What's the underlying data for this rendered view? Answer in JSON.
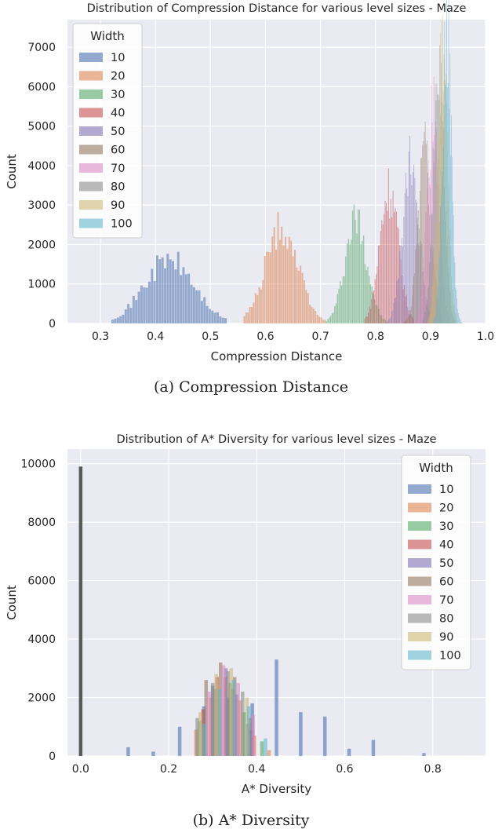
{
  "chart_data": [
    {
      "type": "histogram",
      "title": "Distribution of Compression Distance for various level sizes - Maze",
      "xlabel": "Compression Distance",
      "ylabel": "Count",
      "xlim": [
        0.24,
        1.0
      ],
      "ylim": [
        0,
        7700
      ],
      "xticks": [
        "0.3",
        "0.4",
        "0.5",
        "0.6",
        "0.7",
        "0.8",
        "0.9",
        "1.0"
      ],
      "yticks": [
        "0",
        "1000",
        "2000",
        "3000",
        "4000",
        "5000",
        "6000",
        "7000"
      ],
      "grid": true,
      "legend": {
        "title": "Width",
        "position": "top-left"
      },
      "series": [
        {
          "name": "10",
          "color": "#4c72b0",
          "mean": 0.425,
          "sd": 0.045,
          "peak": 1600,
          "xmin": 0.32,
          "xmax": 0.53
        },
        {
          "name": "20",
          "color": "#dd8452",
          "mean": 0.63,
          "sd": 0.03,
          "peak": 2400,
          "xmin": 0.56,
          "xmax": 0.71
        },
        {
          "name": "30",
          "color": "#55a868",
          "mean": 0.765,
          "sd": 0.02,
          "peak": 2650,
          "xmin": 0.71,
          "xmax": 0.82
        },
        {
          "name": "40",
          "color": "#c44e52",
          "mean": 0.825,
          "sd": 0.017,
          "peak": 3400,
          "xmin": 0.78,
          "xmax": 0.87
        },
        {
          "name": "50",
          "color": "#8172b3",
          "mean": 0.865,
          "sd": 0.015,
          "peak": 3950,
          "xmin": 0.82,
          "xmax": 0.9
        },
        {
          "name": "60",
          "color": "#937860",
          "mean": 0.89,
          "sd": 0.012,
          "peak": 4500,
          "xmin": 0.85,
          "xmax": 0.92
        },
        {
          "name": "70",
          "color": "#da8bc3",
          "mean": 0.905,
          "sd": 0.011,
          "peak": 5200,
          "xmin": 0.87,
          "xmax": 0.935
        },
        {
          "name": "80",
          "color": "#8c8c8c",
          "mean": 0.915,
          "sd": 0.01,
          "peak": 6200,
          "xmin": 0.885,
          "xmax": 0.945
        },
        {
          "name": "90",
          "color": "#ccb974",
          "mean": 0.922,
          "sd": 0.009,
          "peak": 7100,
          "xmin": 0.895,
          "xmax": 0.95
        },
        {
          "name": "100",
          "color": "#64b5cd",
          "mean": 0.93,
          "sd": 0.008,
          "peak": 7600,
          "xmin": 0.905,
          "xmax": 0.96
        }
      ]
    },
    {
      "type": "histogram",
      "title": "Distribution of A* Diversity for various level sizes - Maze",
      "xlabel": "A* Diversity",
      "ylabel": "Count",
      "xlim": [
        -0.03,
        0.92
      ],
      "ylim": [
        0,
        10500
      ],
      "xticks": [
        "0.0",
        "0.2",
        "0.4",
        "0.6",
        "0.8"
      ],
      "yticks": [
        "0",
        "2000",
        "4000",
        "6000",
        "8000",
        "10000"
      ],
      "grid": true,
      "legend": {
        "title": "Width",
        "position": "top-right"
      },
      "zero_bar": {
        "x": 0.0,
        "value": 9900,
        "color": "#595959"
      },
      "bars": [
        {
          "s": 0,
          "x": 0.108,
          "v": 300
        },
        {
          "s": 0,
          "x": 0.165,
          "v": 150
        },
        {
          "s": 0,
          "x": 0.225,
          "v": 1000
        },
        {
          "s": 0,
          "x": 0.28,
          "v": 1700
        },
        {
          "s": 0,
          "x": 0.335,
          "v": 2000
        },
        {
          "s": 0,
          "x": 0.39,
          "v": 1800
        },
        {
          "s": 0,
          "x": 0.445,
          "v": 3300
        },
        {
          "s": 0,
          "x": 0.5,
          "v": 1500
        },
        {
          "s": 0,
          "x": 0.555,
          "v": 1350
        },
        {
          "s": 0,
          "x": 0.61,
          "v": 250
        },
        {
          "s": 0,
          "x": 0.665,
          "v": 550
        },
        {
          "s": 0,
          "x": 0.78,
          "v": 100
        },
        {
          "s": 1,
          "x": 0.262,
          "v": 900
        },
        {
          "s": 1,
          "x": 0.295,
          "v": 2000
        },
        {
          "s": 1,
          "x": 0.328,
          "v": 2700
        },
        {
          "s": 1,
          "x": 0.362,
          "v": 1900
        },
        {
          "s": 1,
          "x": 0.395,
          "v": 700
        },
        {
          "s": 1,
          "x": 0.428,
          "v": 200
        },
        {
          "s": 2,
          "x": 0.27,
          "v": 1200
        },
        {
          "s": 2,
          "x": 0.305,
          "v": 2300
        },
        {
          "s": 2,
          "x": 0.34,
          "v": 2500
        },
        {
          "s": 2,
          "x": 0.372,
          "v": 1500
        },
        {
          "s": 2,
          "x": 0.412,
          "v": 500
        },
        {
          "s": 3,
          "x": 0.278,
          "v": 1600
        },
        {
          "s": 3,
          "x": 0.31,
          "v": 2700
        },
        {
          "s": 3,
          "x": 0.345,
          "v": 2300
        },
        {
          "s": 3,
          "x": 0.38,
          "v": 1100
        },
        {
          "s": 4,
          "x": 0.3,
          "v": 2400
        },
        {
          "s": 4,
          "x": 0.33,
          "v": 3000
        },
        {
          "s": 4,
          "x": 0.355,
          "v": 2100
        },
        {
          "s": 4,
          "x": 0.388,
          "v": 900
        },
        {
          "s": 5,
          "x": 0.285,
          "v": 2600
        },
        {
          "s": 5,
          "x": 0.318,
          "v": 3200
        },
        {
          "s": 5,
          "x": 0.35,
          "v": 2700
        },
        {
          "s": 5,
          "x": 0.385,
          "v": 1300
        },
        {
          "s": 6,
          "x": 0.292,
          "v": 2200
        },
        {
          "s": 6,
          "x": 0.325,
          "v": 3100
        },
        {
          "s": 6,
          "x": 0.358,
          "v": 2500
        },
        {
          "s": 6,
          "x": 0.392,
          "v": 1400
        },
        {
          "s": 7,
          "x": 0.265,
          "v": 1300
        },
        {
          "s": 7,
          "x": 0.3,
          "v": 2500
        },
        {
          "s": 7,
          "x": 0.335,
          "v": 2900
        },
        {
          "s": 7,
          "x": 0.368,
          "v": 2200
        },
        {
          "s": 8,
          "x": 0.272,
          "v": 1500
        },
        {
          "s": 8,
          "x": 0.308,
          "v": 2800
        },
        {
          "s": 8,
          "x": 0.342,
          "v": 3000
        },
        {
          "s": 8,
          "x": 0.378,
          "v": 2000
        },
        {
          "s": 9,
          "x": 0.28,
          "v": 1100
        },
        {
          "s": 9,
          "x": 0.315,
          "v": 2300
        },
        {
          "s": 9,
          "x": 0.348,
          "v": 2600
        },
        {
          "s": 9,
          "x": 0.382,
          "v": 1700
        },
        {
          "s": 9,
          "x": 0.42,
          "v": 600
        }
      ],
      "series": [
        {
          "name": "10",
          "color": "#4c72b0"
        },
        {
          "name": "20",
          "color": "#dd8452"
        },
        {
          "name": "30",
          "color": "#55a868"
        },
        {
          "name": "40",
          "color": "#c44e52"
        },
        {
          "name": "50",
          "color": "#8172b3"
        },
        {
          "name": "60",
          "color": "#937860"
        },
        {
          "name": "70",
          "color": "#da8bc3"
        },
        {
          "name": "80",
          "color": "#8c8c8c"
        },
        {
          "name": "90",
          "color": "#ccb974"
        },
        {
          "name": "100",
          "color": "#64b5cd"
        }
      ]
    }
  ],
  "captions": {
    "a": "(a) Compression Distance",
    "b": "(b) A* Diversity"
  }
}
